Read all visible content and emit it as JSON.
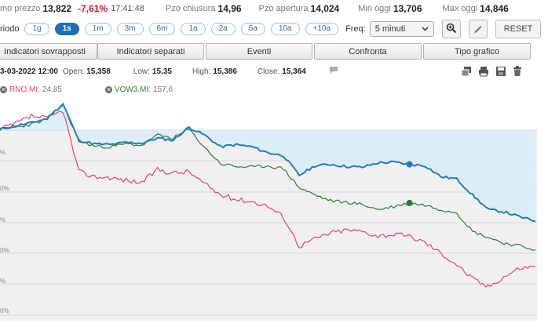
{
  "quote": {
    "price_label": "mo prezzo",
    "price": "13,822",
    "change": "-7,61%",
    "time": "17:41:48",
    "close_label": "Pzo chiusura",
    "close": "14,96",
    "open_label": "Pzo apertura",
    "open": "14,024",
    "min_label": "Min oggi",
    "min": "13,706",
    "max_label": "Max oggi",
    "max": "14,846"
  },
  "period": {
    "label": "riodo",
    "buttons": [
      "1g",
      "1s",
      "1m",
      "3m",
      "6m",
      "1a",
      "2a",
      "5a",
      "10a",
      "+10a"
    ],
    "active": "1s",
    "freq_label": "Freq:",
    "freq_value": "5 minuti",
    "reset_label": "RESET"
  },
  "menu": {
    "items": [
      "Indicatori sovrapposti",
      "Indicatori separati",
      "Eventi",
      "Confronta",
      "Tipo grafico"
    ]
  },
  "info": {
    "date": "3-03-2022 12:00",
    "open_label": "Open:",
    "open": "15,358",
    "low_label": "Low:",
    "low": "15,35",
    "high_label": "High:",
    "high": "15,386",
    "close_label": "Close:",
    "close": "15,364"
  },
  "legend": [
    {
      "ticker": "RNO.MI:",
      "value": "24,85",
      "color": "#e8436b"
    },
    {
      "ticker": "VOW3.MI:",
      "value": "157,6",
      "color": "#2e7d32"
    }
  ],
  "chart_data": {
    "type": "line",
    "ylabels": [
      "%",
      "0%",
      "%",
      "0%",
      "%",
      "0%"
    ],
    "series": [
      {
        "color": "#1f7fc4",
        "values": [
          0.0,
          0.5,
          0.9,
          1.5,
          3.5,
          -1.5,
          -2.0,
          -2.1,
          -1.8,
          -1.9,
          -1.2,
          -1.5,
          0.3,
          -0.8,
          -2.4,
          -2.1,
          -2.4,
          -3.2,
          -3.6,
          -6.3,
          -5.0,
          -4.8,
          -5.1,
          -5.2,
          -4.6,
          -4.5,
          -4.8,
          -5.0,
          -6.5,
          -6.8,
          -9.0,
          -11.0,
          -11.3,
          -12.0,
          -12.6
        ]
      },
      {
        "color": "#2e7d32",
        "values": [
          0.0,
          0.3,
          0.7,
          1.4,
          3.4,
          -1.6,
          -2.3,
          -2.4,
          -2.0,
          -2.2,
          -0.8,
          -1.2,
          0.0,
          -2.5,
          -4.7,
          -5.1,
          -5.2,
          -5.0,
          -5.4,
          -8.0,
          -9.0,
          -9.8,
          -10.0,
          -10.3,
          -11.0,
          -10.6,
          -10.1,
          -10.4,
          -11.0,
          -11.4,
          -14.0,
          -14.8,
          -15.6,
          -16.0,
          -16.5
        ]
      },
      {
        "color": "#e8436b",
        "values": [
          0.0,
          0.8,
          1.8,
          1.5,
          2.6,
          -5.8,
          -6.5,
          -6.6,
          -7.0,
          -7.3,
          -5.5,
          -6.0,
          -5.8,
          -7.5,
          -9.0,
          -9.6,
          -9.9,
          -10.5,
          -12.0,
          -16.0,
          -15.0,
          -14.2,
          -13.8,
          -14.0,
          -14.6,
          -14.4,
          -14.7,
          -15.5,
          -17.0,
          -18.5,
          -20.5,
          -21.6,
          -20.2,
          -19.0,
          -18.8
        ]
      }
    ],
    "markers": [
      {
        "series": 0,
        "index": 26
      },
      {
        "series": 1,
        "index": 26
      }
    ]
  }
}
